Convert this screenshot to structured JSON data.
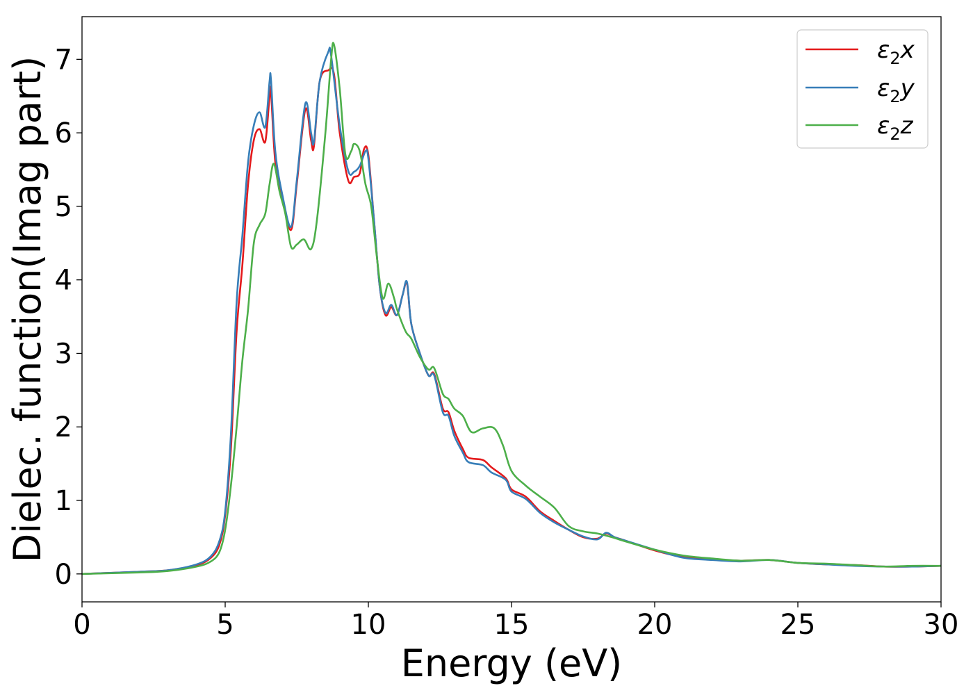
{
  "chart_data": {
    "type": "line",
    "title": "",
    "xlabel": "Energy (eV)",
    "ylabel": "Dielec. function(Imag part)",
    "xlim": [
      0,
      30
    ],
    "ylim": [
      -0.38,
      7.58
    ],
    "xticks": [
      0,
      5,
      10,
      15,
      20,
      25,
      30
    ],
    "xtick_labels": [
      "0",
      "5",
      "10",
      "15",
      "20",
      "25",
      "30"
    ],
    "yticks": [
      0,
      1,
      2,
      3,
      4,
      5,
      6,
      7
    ],
    "ytick_labels": [
      "0",
      "1",
      "2",
      "3",
      "4",
      "5",
      "6",
      "7"
    ],
    "grid": false,
    "legend_position": "top-right",
    "series": [
      {
        "name": "ε2x",
        "legend_base": "ε",
        "legend_sub": "2",
        "legend_axis": "x",
        "color": "#e41a1c",
        "points": [
          [
            0,
            0.0
          ],
          [
            2,
            0.03
          ],
          [
            3,
            0.05
          ],
          [
            4,
            0.12
          ],
          [
            4.5,
            0.22
          ],
          [
            4.8,
            0.4
          ],
          [
            5.0,
            0.8
          ],
          [
            5.2,
            1.7
          ],
          [
            5.4,
            3.3
          ],
          [
            5.6,
            4.2
          ],
          [
            5.8,
            5.3
          ],
          [
            6.0,
            5.9
          ],
          [
            6.2,
            6.05
          ],
          [
            6.4,
            5.88
          ],
          [
            6.55,
            6.5
          ],
          [
            6.6,
            6.55
          ],
          [
            6.75,
            5.6
          ],
          [
            7.0,
            5.1
          ],
          [
            7.3,
            4.68
          ],
          [
            7.5,
            5.3
          ],
          [
            7.8,
            6.32
          ],
          [
            8.0,
            5.9
          ],
          [
            8.1,
            5.82
          ],
          [
            8.3,
            6.7
          ],
          [
            8.6,
            6.85
          ],
          [
            8.8,
            6.8
          ],
          [
            9.0,
            6.0
          ],
          [
            9.3,
            5.35
          ],
          [
            9.5,
            5.4
          ],
          [
            9.7,
            5.45
          ],
          [
            9.85,
            5.78
          ],
          [
            10.0,
            5.7
          ],
          [
            10.2,
            4.8
          ],
          [
            10.4,
            3.9
          ],
          [
            10.6,
            3.52
          ],
          [
            10.8,
            3.63
          ],
          [
            11.0,
            3.52
          ],
          [
            11.2,
            3.8
          ],
          [
            11.35,
            3.95
          ],
          [
            11.5,
            3.4
          ],
          [
            11.8,
            3.0
          ],
          [
            12.1,
            2.7
          ],
          [
            12.3,
            2.72
          ],
          [
            12.6,
            2.25
          ],
          [
            12.8,
            2.2
          ],
          [
            13.0,
            1.95
          ],
          [
            13.3,
            1.7
          ],
          [
            13.5,
            1.58
          ],
          [
            14.0,
            1.55
          ],
          [
            14.3,
            1.45
          ],
          [
            14.8,
            1.3
          ],
          [
            15.0,
            1.15
          ],
          [
            15.5,
            1.05
          ],
          [
            16.0,
            0.85
          ],
          [
            16.5,
            0.72
          ],
          [
            17.0,
            0.6
          ],
          [
            17.5,
            0.5
          ],
          [
            18.0,
            0.48
          ],
          [
            18.3,
            0.55
          ],
          [
            18.6,
            0.5
          ],
          [
            19.0,
            0.45
          ],
          [
            20.0,
            0.32
          ],
          [
            21.0,
            0.23
          ],
          [
            22.0,
            0.2
          ],
          [
            23.0,
            0.18
          ],
          [
            24.0,
            0.19
          ],
          [
            25.0,
            0.15
          ],
          [
            26.0,
            0.13
          ],
          [
            27.0,
            0.12
          ],
          [
            28.0,
            0.1
          ],
          [
            29.0,
            0.1
          ],
          [
            30.0,
            0.11
          ]
        ]
      },
      {
        "name": "ε2y",
        "legend_base": "ε",
        "legend_sub": "2",
        "legend_axis": "y",
        "color": "#377eb8",
        "points": [
          [
            0,
            0.0
          ],
          [
            2,
            0.03
          ],
          [
            3,
            0.05
          ],
          [
            4,
            0.13
          ],
          [
            4.5,
            0.24
          ],
          [
            4.8,
            0.45
          ],
          [
            5.0,
            0.85
          ],
          [
            5.2,
            1.9
          ],
          [
            5.4,
            3.7
          ],
          [
            5.6,
            4.6
          ],
          [
            5.8,
            5.6
          ],
          [
            6.0,
            6.1
          ],
          [
            6.2,
            6.28
          ],
          [
            6.4,
            6.08
          ],
          [
            6.55,
            6.7
          ],
          [
            6.6,
            6.72
          ],
          [
            6.75,
            5.75
          ],
          [
            7.0,
            5.15
          ],
          [
            7.3,
            4.72
          ],
          [
            7.5,
            5.35
          ],
          [
            7.8,
            6.4
          ],
          [
            8.0,
            6.0
          ],
          [
            8.1,
            5.88
          ],
          [
            8.3,
            6.7
          ],
          [
            8.6,
            7.1
          ],
          [
            8.7,
            7.05
          ],
          [
            9.0,
            6.1
          ],
          [
            9.3,
            5.48
          ],
          [
            9.5,
            5.47
          ],
          [
            9.7,
            5.55
          ],
          [
            9.9,
            5.75
          ],
          [
            10.0,
            5.65
          ],
          [
            10.2,
            4.8
          ],
          [
            10.4,
            3.9
          ],
          [
            10.6,
            3.55
          ],
          [
            10.8,
            3.66
          ],
          [
            11.0,
            3.52
          ],
          [
            11.2,
            3.8
          ],
          [
            11.35,
            3.97
          ],
          [
            11.5,
            3.4
          ],
          [
            11.8,
            3.0
          ],
          [
            12.1,
            2.7
          ],
          [
            12.3,
            2.7
          ],
          [
            12.6,
            2.2
          ],
          [
            12.8,
            2.15
          ],
          [
            13.0,
            1.88
          ],
          [
            13.3,
            1.65
          ],
          [
            13.5,
            1.52
          ],
          [
            14.0,
            1.48
          ],
          [
            14.3,
            1.38
          ],
          [
            14.8,
            1.28
          ],
          [
            15.0,
            1.12
          ],
          [
            15.5,
            1.02
          ],
          [
            16.0,
            0.83
          ],
          [
            16.5,
            0.7
          ],
          [
            17.0,
            0.6
          ],
          [
            17.5,
            0.51
          ],
          [
            18.0,
            0.47
          ],
          [
            18.3,
            0.56
          ],
          [
            18.6,
            0.5
          ],
          [
            19.0,
            0.45
          ],
          [
            20.0,
            0.33
          ],
          [
            21.0,
            0.22
          ],
          [
            22.0,
            0.19
          ],
          [
            23.0,
            0.17
          ],
          [
            24.0,
            0.19
          ],
          [
            25.0,
            0.15
          ],
          [
            26.0,
            0.13
          ],
          [
            27.0,
            0.11
          ],
          [
            28.0,
            0.1
          ],
          [
            29.0,
            0.1
          ],
          [
            30.0,
            0.11
          ]
        ]
      },
      {
        "name": "ε2z",
        "legend_base": "ε",
        "legend_sub": "2",
        "legend_axis": "z",
        "color": "#4daf4a",
        "points": [
          [
            0,
            0.0
          ],
          [
            2,
            0.02
          ],
          [
            3,
            0.04
          ],
          [
            4,
            0.1
          ],
          [
            4.5,
            0.17
          ],
          [
            4.8,
            0.3
          ],
          [
            5.0,
            0.6
          ],
          [
            5.2,
            1.2
          ],
          [
            5.4,
            2.0
          ],
          [
            5.6,
            2.9
          ],
          [
            5.8,
            3.6
          ],
          [
            6.0,
            4.5
          ],
          [
            6.2,
            4.75
          ],
          [
            6.4,
            4.9
          ],
          [
            6.55,
            5.3
          ],
          [
            6.7,
            5.58
          ],
          [
            6.9,
            5.2
          ],
          [
            7.1,
            4.9
          ],
          [
            7.3,
            4.45
          ],
          [
            7.5,
            4.48
          ],
          [
            7.75,
            4.55
          ],
          [
            8.0,
            4.42
          ],
          [
            8.2,
            4.8
          ],
          [
            8.5,
            6.0
          ],
          [
            8.7,
            7.0
          ],
          [
            8.8,
            7.2
          ],
          [
            9.0,
            6.6
          ],
          [
            9.2,
            5.7
          ],
          [
            9.4,
            5.75
          ],
          [
            9.5,
            5.85
          ],
          [
            9.7,
            5.75
          ],
          [
            9.9,
            5.3
          ],
          [
            10.1,
            5.0
          ],
          [
            10.3,
            4.3
          ],
          [
            10.5,
            3.75
          ],
          [
            10.7,
            3.95
          ],
          [
            10.9,
            3.75
          ],
          [
            11.0,
            3.6
          ],
          [
            11.3,
            3.3
          ],
          [
            11.5,
            3.2
          ],
          [
            11.8,
            2.95
          ],
          [
            12.1,
            2.78
          ],
          [
            12.3,
            2.8
          ],
          [
            12.6,
            2.45
          ],
          [
            12.8,
            2.38
          ],
          [
            13.0,
            2.25
          ],
          [
            13.3,
            2.15
          ],
          [
            13.6,
            1.93
          ],
          [
            14.0,
            1.98
          ],
          [
            14.4,
            1.98
          ],
          [
            14.7,
            1.75
          ],
          [
            15.0,
            1.4
          ],
          [
            15.5,
            1.2
          ],
          [
            16.0,
            1.05
          ],
          [
            16.5,
            0.9
          ],
          [
            17.0,
            0.65
          ],
          [
            17.5,
            0.58
          ],
          [
            18.0,
            0.55
          ],
          [
            18.5,
            0.5
          ],
          [
            19.0,
            0.44
          ],
          [
            20.0,
            0.33
          ],
          [
            21.0,
            0.25
          ],
          [
            22.0,
            0.21
          ],
          [
            23.0,
            0.18
          ],
          [
            24.0,
            0.19
          ],
          [
            25.0,
            0.15
          ],
          [
            26.0,
            0.14
          ],
          [
            27.0,
            0.12
          ],
          [
            28.0,
            0.1
          ],
          [
            29.0,
            0.11
          ],
          [
            30.0,
            0.11
          ]
        ]
      }
    ]
  }
}
